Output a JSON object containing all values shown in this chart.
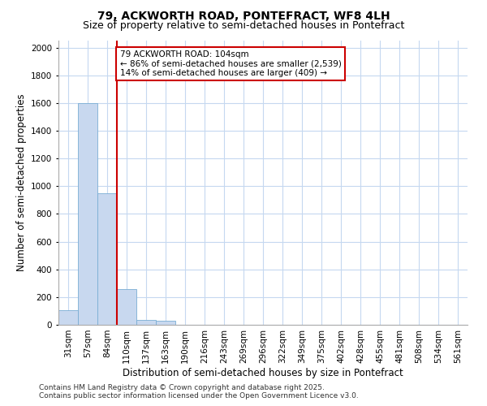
{
  "title1": "79, ACKWORTH ROAD, PONTEFRACT, WF8 4LH",
  "title2": "Size of property relative to semi-detached houses in Pontefract",
  "xlabel": "Distribution of semi-detached houses by size in Pontefract",
  "ylabel": "Number of semi-detached properties",
  "categories": [
    "31sqm",
    "57sqm",
    "84sqm",
    "110sqm",
    "137sqm",
    "163sqm",
    "190sqm",
    "216sqm",
    "243sqm",
    "269sqm",
    "296sqm",
    "322sqm",
    "349sqm",
    "375sqm",
    "402sqm",
    "428sqm",
    "455sqm",
    "481sqm",
    "508sqm",
    "534sqm",
    "561sqm"
  ],
  "values": [
    105,
    1600,
    950,
    260,
    35,
    30,
    0,
    0,
    0,
    0,
    0,
    0,
    0,
    0,
    0,
    0,
    0,
    0,
    0,
    0,
    0
  ],
  "bar_color": "#c8d8ef",
  "bar_edge_color": "#7aadd4",
  "vline_color": "#cc0000",
  "vline_pos": 2.5,
  "annotation_line1": "79 ACKWORTH ROAD: 104sqm",
  "annotation_line2": "← 86% of semi-detached houses are smaller (2,539)",
  "annotation_line3": "14% of semi-detached houses are larger (409) →",
  "annotation_box_color": "#cc0000",
  "ylim": [
    0,
    2050
  ],
  "yticks": [
    0,
    200,
    400,
    600,
    800,
    1000,
    1200,
    1400,
    1600,
    1800,
    2000
  ],
  "background_color": "#ffffff",
  "grid_color": "#c5d8f0",
  "footer1": "Contains HM Land Registry data © Crown copyright and database right 2025.",
  "footer2": "Contains public sector information licensed under the Open Government Licence v3.0.",
  "title_fontsize": 10,
  "subtitle_fontsize": 9,
  "axis_label_fontsize": 8.5,
  "tick_fontsize": 7.5,
  "annotation_fontsize": 7.5,
  "footer_fontsize": 6.5
}
